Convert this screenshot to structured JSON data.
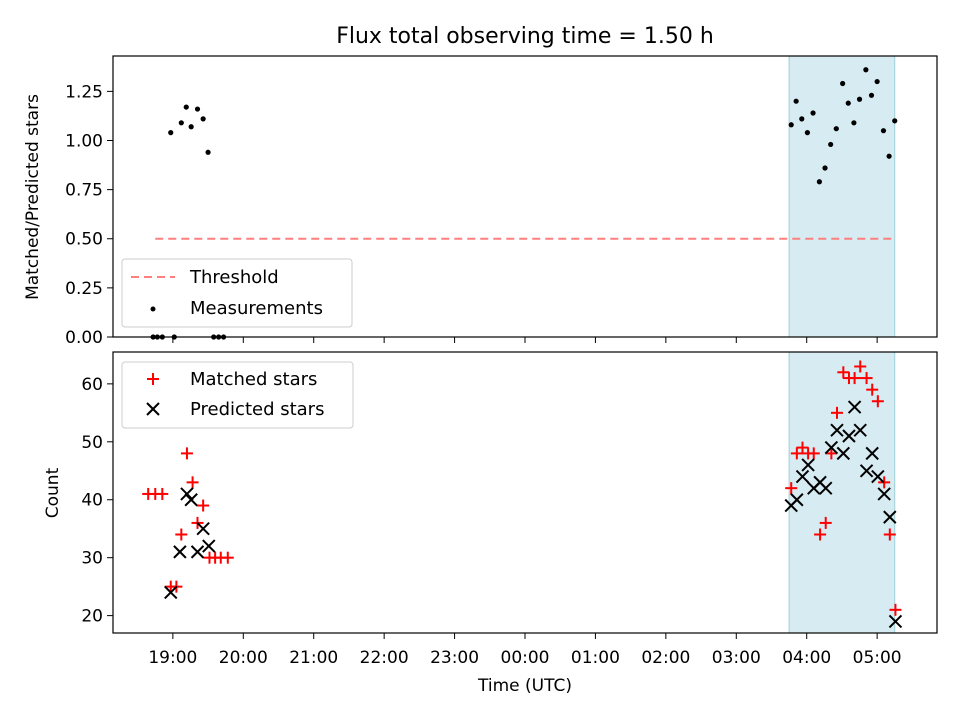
{
  "chart_data": [
    {
      "type": "scatter",
      "title": "Flux total observing time = 1.50 h",
      "xlabel": "",
      "ylabel": "Matched/Predicted stars",
      "ylim": [
        0,
        1.43
      ],
      "xlim_hours": [
        18.15,
        29.85
      ],
      "yticks": [
        0.0,
        0.25,
        0.5,
        0.75,
        1.0,
        1.25
      ],
      "ytick_labels": [
        "0.00",
        "0.25",
        "0.50",
        "0.75",
        "1.00",
        "1.25"
      ],
      "highlight_span_hours": [
        27.75,
        29.25
      ],
      "legend_position": "lower-left",
      "threshold": {
        "name": "Threshold",
        "value": 0.5,
        "x_range_hours": [
          18.75,
          29.25
        ],
        "color": "#ff7f7f"
      },
      "measurements": {
        "name": "Measurements",
        "color": "#000000",
        "points": [
          [
            18.72,
            0.0
          ],
          [
            18.78,
            0.0
          ],
          [
            18.85,
            0.0
          ],
          [
            18.97,
            1.04
          ],
          [
            19.02,
            0.0
          ],
          [
            19.12,
            1.09
          ],
          [
            19.19,
            1.17
          ],
          [
            19.26,
            1.07
          ],
          [
            19.35,
            1.16
          ],
          [
            19.43,
            1.11
          ],
          [
            19.5,
            0.94
          ],
          [
            19.58,
            0.0
          ],
          [
            19.65,
            0.0
          ],
          [
            19.72,
            0.0
          ],
          [
            27.78,
            1.08
          ],
          [
            27.85,
            1.2
          ],
          [
            27.93,
            1.11
          ],
          [
            28.01,
            1.04
          ],
          [
            28.09,
            1.14
          ],
          [
            28.18,
            0.79
          ],
          [
            28.26,
            0.86
          ],
          [
            28.34,
            0.98
          ],
          [
            28.42,
            1.06
          ],
          [
            28.51,
            1.29
          ],
          [
            28.59,
            1.19
          ],
          [
            28.67,
            1.09
          ],
          [
            28.75,
            1.21
          ],
          [
            28.84,
            1.36
          ],
          [
            28.92,
            1.23
          ],
          [
            29.0,
            1.3
          ],
          [
            29.09,
            1.05
          ],
          [
            29.17,
            0.92
          ],
          [
            29.25,
            1.1
          ]
        ]
      }
    },
    {
      "type": "scatter",
      "title": "",
      "xlabel": "Time (UTC)",
      "ylabel": "Count",
      "ylim": [
        17,
        65.5
      ],
      "xlim_hours": [
        18.15,
        29.85
      ],
      "yticks": [
        20,
        30,
        40,
        50,
        60
      ],
      "ytick_labels": [
        "20",
        "30",
        "40",
        "50",
        "60"
      ],
      "xticks_hours": [
        19,
        20,
        21,
        22,
        23,
        24,
        25,
        26,
        27,
        28,
        29
      ],
      "xtick_labels": [
        "19:00",
        "20:00",
        "21:00",
        "22:00",
        "23:00",
        "00:00",
        "01:00",
        "02:00",
        "03:00",
        "04:00",
        "05:00"
      ],
      "highlight_span_hours": [
        27.75,
        29.25
      ],
      "highlight_color": "#add8e6",
      "legend_position": "upper-left",
      "series": [
        {
          "name": "Matched stars",
          "marker": "+",
          "color": "#ff0000",
          "points": [
            [
              18.65,
              41
            ],
            [
              18.75,
              41
            ],
            [
              18.85,
              41
            ],
            [
              18.97,
              25
            ],
            [
              19.05,
              25
            ],
            [
              19.12,
              34
            ],
            [
              19.2,
              48
            ],
            [
              19.28,
              43
            ],
            [
              19.35,
              36
            ],
            [
              19.43,
              39
            ],
            [
              19.52,
              30
            ],
            [
              19.6,
              30
            ],
            [
              19.68,
              30
            ],
            [
              19.78,
              30
            ],
            [
              27.78,
              42
            ],
            [
              27.86,
              48
            ],
            [
              27.94,
              49
            ],
            [
              28.02,
              48
            ],
            [
              28.1,
              48
            ],
            [
              28.19,
              34
            ],
            [
              28.27,
              36
            ],
            [
              28.35,
              48
            ],
            [
              28.43,
              55
            ],
            [
              28.52,
              62
            ],
            [
              28.6,
              61
            ],
            [
              28.68,
              61
            ],
            [
              28.76,
              63
            ],
            [
              28.85,
              61
            ],
            [
              28.93,
              59
            ],
            [
              29.01,
              57
            ],
            [
              29.1,
              43
            ],
            [
              29.18,
              34
            ],
            [
              29.26,
              21
            ]
          ]
        },
        {
          "name": "Predicted stars",
          "marker": "x",
          "color": "#000000",
          "points": [
            [
              18.97,
              24
            ],
            [
              19.1,
              31
            ],
            [
              19.2,
              41
            ],
            [
              19.26,
              40
            ],
            [
              19.35,
              31
            ],
            [
              19.43,
              35
            ],
            [
              19.51,
              32
            ],
            [
              27.78,
              39
            ],
            [
              27.86,
              40
            ],
            [
              27.94,
              44
            ],
            [
              28.02,
              46
            ],
            [
              28.1,
              42
            ],
            [
              28.19,
              43
            ],
            [
              28.27,
              42
            ],
            [
              28.35,
              49
            ],
            [
              28.43,
              52
            ],
            [
              28.52,
              48
            ],
            [
              28.6,
              51
            ],
            [
              28.68,
              56
            ],
            [
              28.76,
              52
            ],
            [
              28.85,
              45
            ],
            [
              28.93,
              48
            ],
            [
              29.01,
              44
            ],
            [
              29.1,
              41
            ],
            [
              29.18,
              37
            ],
            [
              29.26,
              19
            ]
          ]
        }
      ]
    }
  ]
}
